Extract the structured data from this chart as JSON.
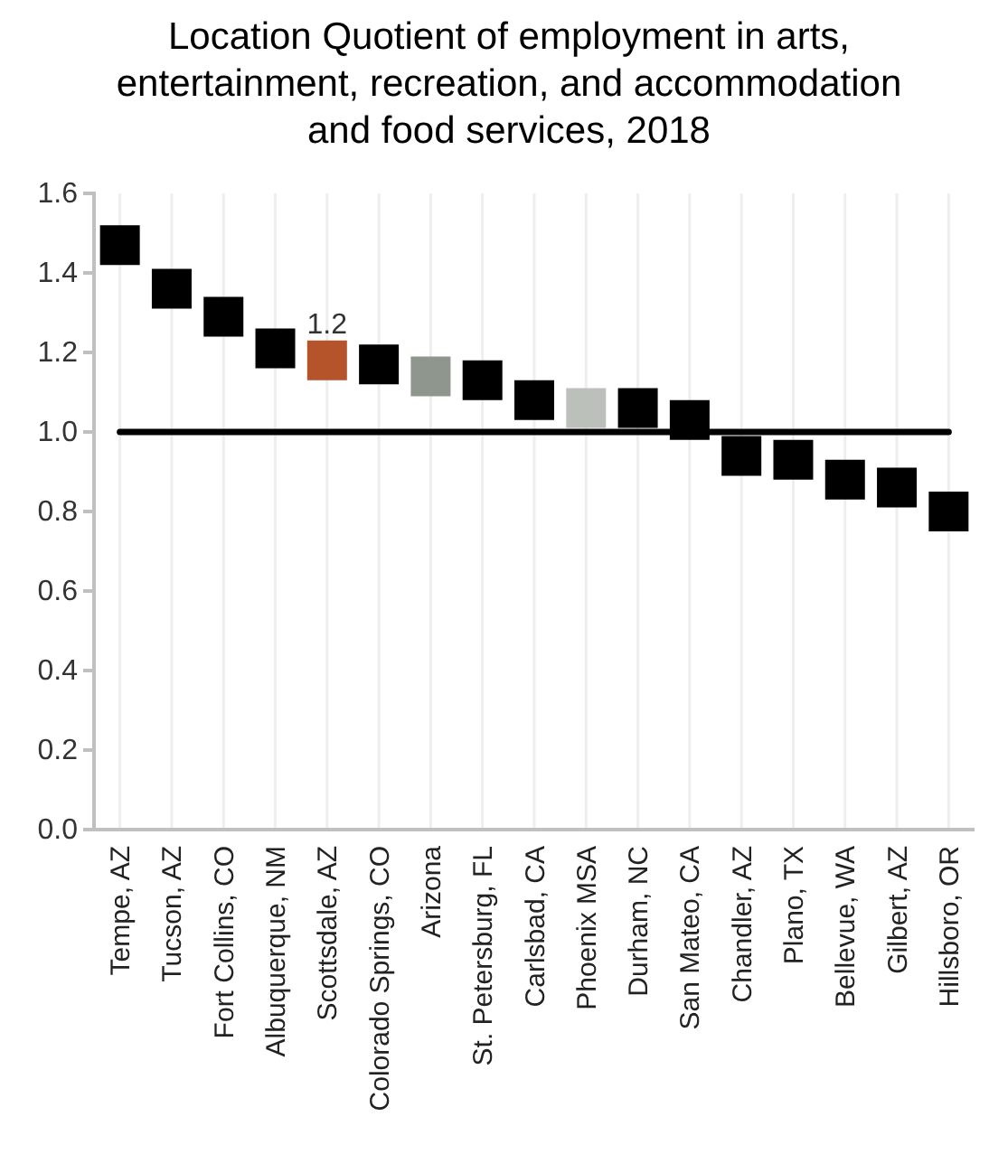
{
  "chart_data": {
    "type": "scatter",
    "title": "Location Quotient of employment in arts, entertainment, recreation, and accommodation and food services, 2018",
    "categories": [
      "Tempe, AZ",
      "Tucson, AZ",
      "Fort Collins, CO",
      "Albuquerque, NM",
      "Scottsdale, AZ",
      "Colorado Springs, CO",
      "Arizona",
      "St. Petersburg, FL",
      "Carlsbad, CA",
      "Phoenix MSA",
      "Durham, NC",
      "San Mateo, CA",
      "Chandler, AZ",
      "Plano, TX",
      "Bellevue, WA",
      "Gilbert, AZ",
      "Hillsboro, OR"
    ],
    "values": [
      1.47,
      1.36,
      1.29,
      1.21,
      1.18,
      1.17,
      1.14,
      1.13,
      1.08,
      1.06,
      1.06,
      1.03,
      0.94,
      0.93,
      0.88,
      0.86,
      0.8
    ],
    "colors": [
      "#000000",
      "#000000",
      "#000000",
      "#000000",
      "#b5532a",
      "#000000",
      "#8f968e",
      "#000000",
      "#000000",
      "#bcc0bb",
      "#000000",
      "#000000",
      "#000000",
      "#000000",
      "#000000",
      "#000000",
      "#000000"
    ],
    "value_labels": [
      null,
      null,
      null,
      null,
      "1.2",
      null,
      null,
      null,
      null,
      null,
      null,
      null,
      null,
      null,
      null,
      null,
      null
    ],
    "ylim": [
      0,
      1.6
    ],
    "yticks": [
      {
        "value": 0,
        "label": "0.0"
      },
      {
        "value": 0.2,
        "label": "0.2"
      },
      {
        "value": 0.4,
        "label": "0.4"
      },
      {
        "value": 0.6,
        "label": "0.6"
      },
      {
        "value": 0.8,
        "label": "0.8"
      },
      {
        "value": 1,
        "label": "1.0"
      },
      {
        "value": 1.2,
        "label": "1.2"
      },
      {
        "value": 1.4,
        "label": "1.4"
      },
      {
        "value": 1.6,
        "label": "1.6"
      }
    ],
    "grid": "x",
    "marker": "square",
    "ref_lines": [
      {
        "axis": "y",
        "value": 1,
        "color": "#000000"
      }
    ]
  }
}
